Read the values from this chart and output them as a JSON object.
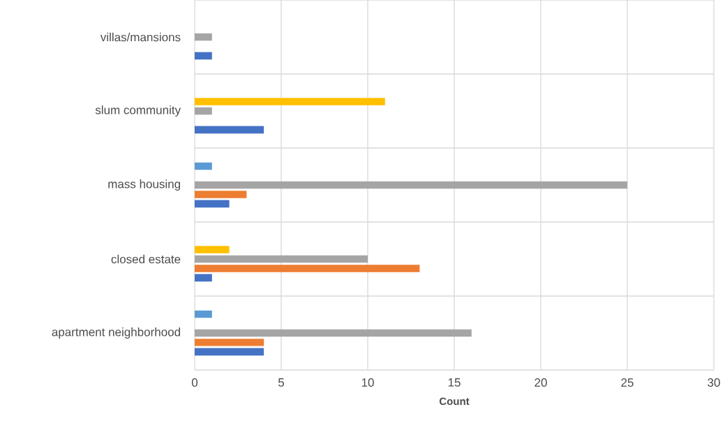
{
  "chart_data": {
    "type": "bar",
    "orientation": "horizontal",
    "xlabel": "Count",
    "categories": [
      "villas/mansions",
      "slum community",
      "mass housing",
      "closed estate",
      "apartment neighborhood"
    ],
    "series": [
      {
        "color": "#4472c4",
        "values": [
          1,
          4,
          2,
          1,
          4
        ]
      },
      {
        "color": "#ed7d31",
        "values": [
          null,
          null,
          3,
          13,
          4
        ]
      },
      {
        "color": "#a5a5a5",
        "values": [
          1,
          1,
          25,
          10,
          16
        ]
      },
      {
        "color": "#ffc000",
        "values": [
          null,
          11,
          null,
          2,
          null
        ]
      },
      {
        "color": "#5b9bd5",
        "values": [
          null,
          null,
          1,
          null,
          1
        ]
      }
    ],
    "xlim": [
      0,
      30
    ],
    "xticks": [
      0,
      5,
      10,
      15,
      20,
      25,
      30
    ],
    "grid": true
  }
}
